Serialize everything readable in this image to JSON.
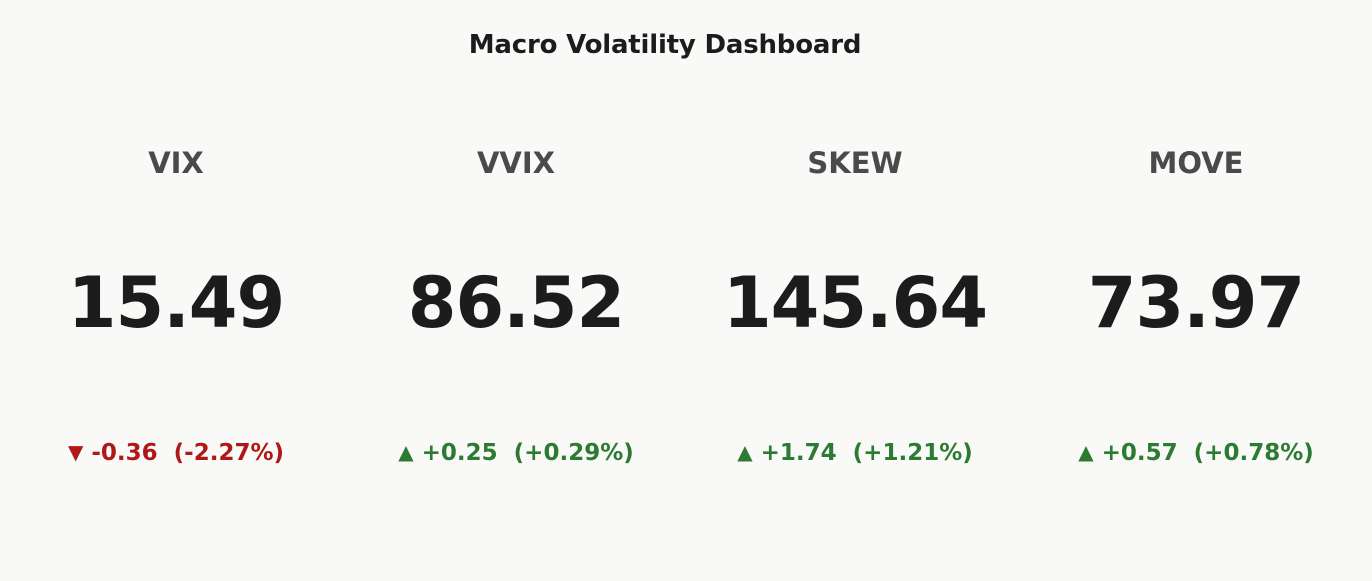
{
  "title": "Macro Volatility Dashboard",
  "colors": {
    "background": "#f9f9f7",
    "text": "#1c1c1c",
    "label": "#4a4a4a",
    "down": "#b01818",
    "up": "#2d7a32"
  },
  "chart_data": {
    "type": "table",
    "title": "Macro Volatility Dashboard",
    "indicators": [
      {
        "name": "VIX",
        "value": "15.49",
        "change": "-0.36",
        "change_pct": "(-2.27%)",
        "direction": "down",
        "arrow": "▼"
      },
      {
        "name": "VVIX",
        "value": "86.52",
        "change": "+0.25",
        "change_pct": "(+0.29%)",
        "direction": "up",
        "arrow": "▲"
      },
      {
        "name": "SKEW",
        "value": "145.64",
        "change": "+1.74",
        "change_pct": "(+1.21%)",
        "direction": "up",
        "arrow": "▲"
      },
      {
        "name": "MOVE",
        "value": "73.97",
        "change": "+0.57",
        "change_pct": "(+0.78%)",
        "direction": "up",
        "arrow": "▲"
      }
    ]
  }
}
